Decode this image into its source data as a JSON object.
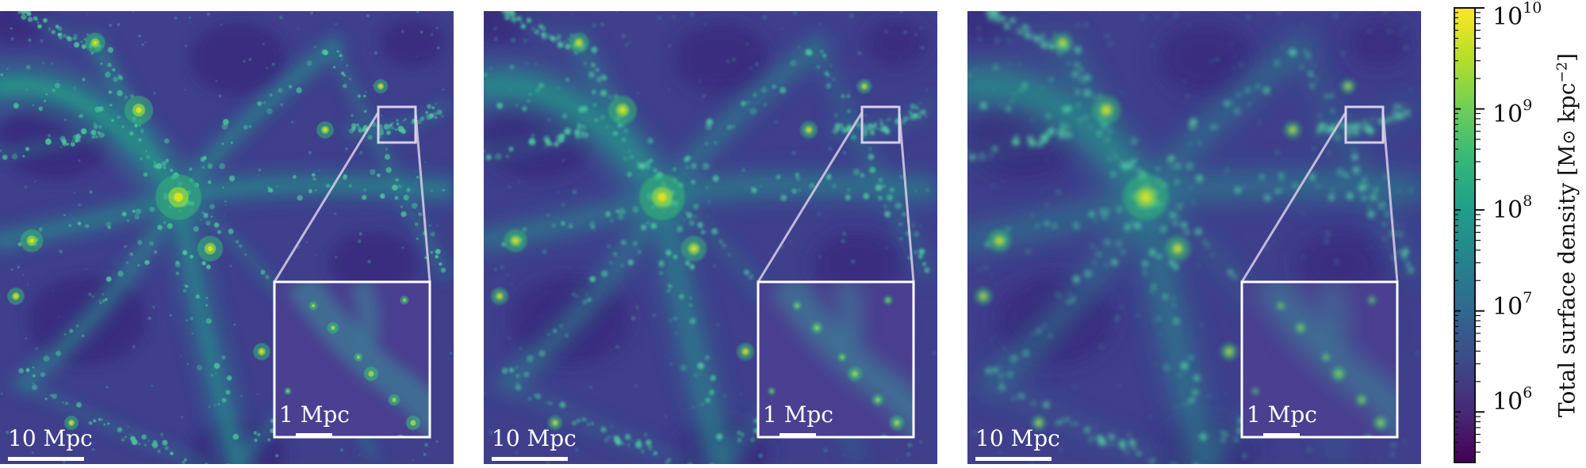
{
  "figure": {
    "panels": [
      {
        "name": "panel-1",
        "scale_label": "10 Mpc",
        "inset_scale_label": "1 Mpc",
        "blur": 0.6
      },
      {
        "name": "panel-2",
        "scale_label": "10 Mpc",
        "inset_scale_label": "1 Mpc",
        "blur": 1.6
      },
      {
        "name": "panel-3",
        "scale_label": "10 Mpc",
        "inset_scale_label": "1 Mpc",
        "blur": 2.8
      }
    ],
    "colorbar": {
      "label_parts": [
        "Total surface density [M",
        "⊙",
        " kpc",
        "−2",
        "]"
      ],
      "tick_base": "10",
      "tick_exponents": [
        "6",
        "7",
        "8",
        "9",
        "10"
      ],
      "scale": "log",
      "range_log10": [
        5.5,
        10.0
      ],
      "colormap": "viridis",
      "colors": [
        "#440154",
        "#482878",
        "#3e4989",
        "#31688e",
        "#26828e",
        "#1f9e89",
        "#35b779",
        "#6ece58",
        "#b5de2b",
        "#fde725"
      ]
    }
  }
}
